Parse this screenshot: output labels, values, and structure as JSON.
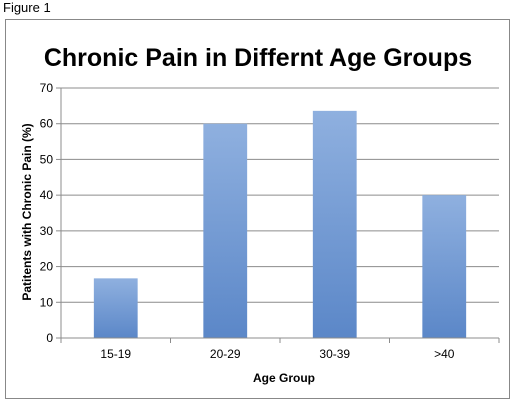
{
  "figure_label": "Figure 1",
  "colors": {
    "bar_top": "#8fb0df",
    "bar_bottom": "#5b87c8",
    "grid": "#8c8c8c",
    "axis": "#8c8c8c"
  },
  "chart_data": {
    "type": "bar",
    "title": "Chronic Pain in Differnt Age Groups",
    "xlabel": "Age Group",
    "ylabel": "Patitents with Chronic Pain (%)",
    "categories": [
      "15-19",
      "20-29",
      "30-39",
      ">40"
    ],
    "values": [
      16.7,
      60,
      63.6,
      40
    ],
    "ylim": [
      0,
      70
    ],
    "yticks": [
      0,
      10,
      20,
      30,
      40,
      50,
      60,
      70
    ],
    "grid": true,
    "legend": "none"
  }
}
